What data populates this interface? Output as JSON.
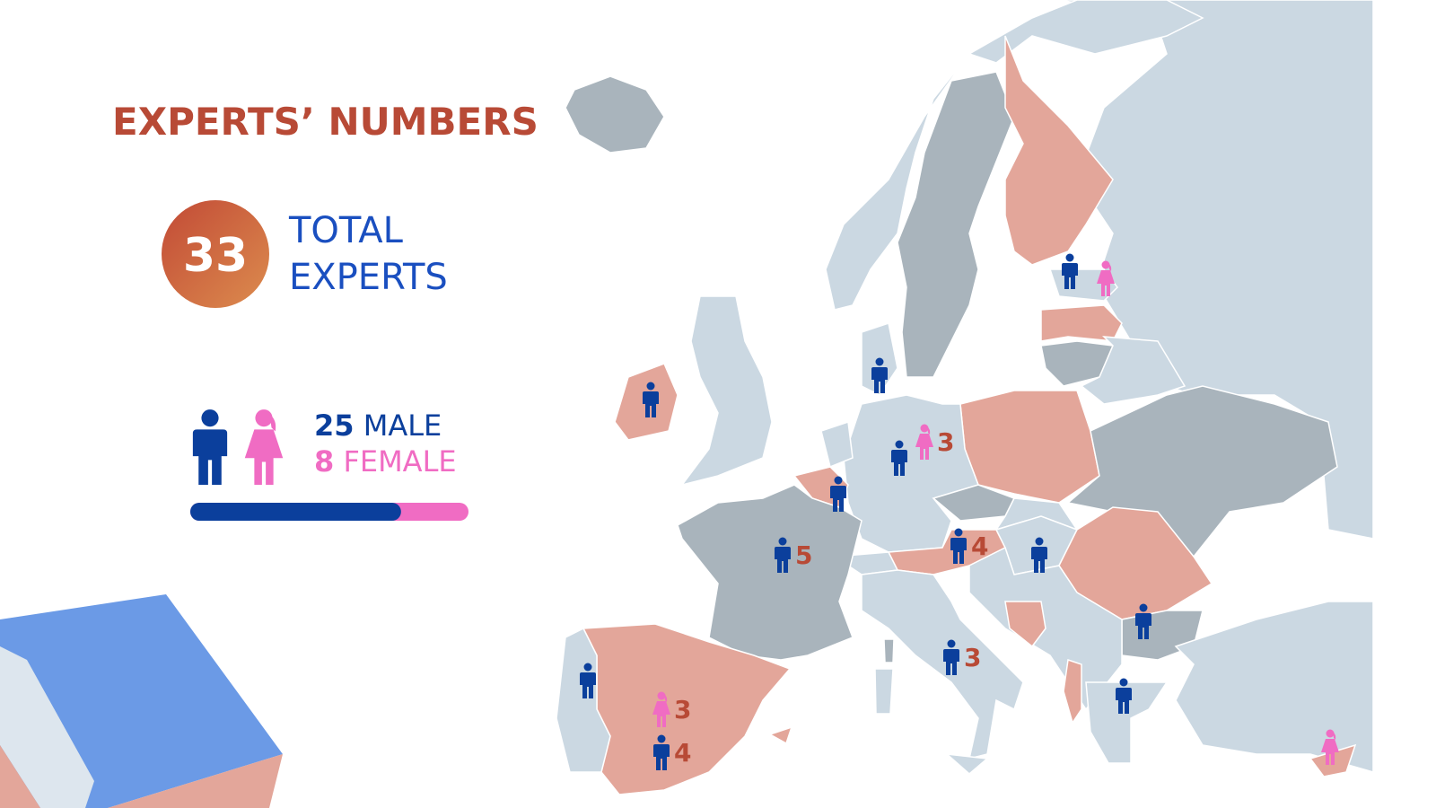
{
  "header": {
    "title": "EXPERTS’ NUMBERS"
  },
  "total": {
    "value": 33,
    "lines": [
      "TOTAL",
      "EXPERTS"
    ]
  },
  "gender": {
    "male": {
      "value": 25,
      "label": "MALE",
      "color": "#0b3f9c"
    },
    "female": {
      "value": 8,
      "label": "FEMALE",
      "color": "#f06cc3"
    }
  },
  "map": {
    "markers": [
      {
        "icon": "male"
      },
      {
        "icon": "female"
      },
      {
        "icon": "male"
      },
      {
        "icon": "male"
      },
      {
        "icon": "female",
        "count": 3
      },
      {
        "icon": "male"
      },
      {
        "icon": "male"
      },
      {
        "icon": "male",
        "count": 5
      },
      {
        "icon": "male",
        "count": 4
      },
      {
        "icon": "male"
      },
      {
        "icon": "male"
      },
      {
        "icon": "male",
        "count": 3
      },
      {
        "icon": "male"
      },
      {
        "icon": "male"
      },
      {
        "icon": "female",
        "count": 3
      },
      {
        "icon": "male",
        "count": 4
      },
      {
        "icon": "female"
      }
    ]
  }
}
